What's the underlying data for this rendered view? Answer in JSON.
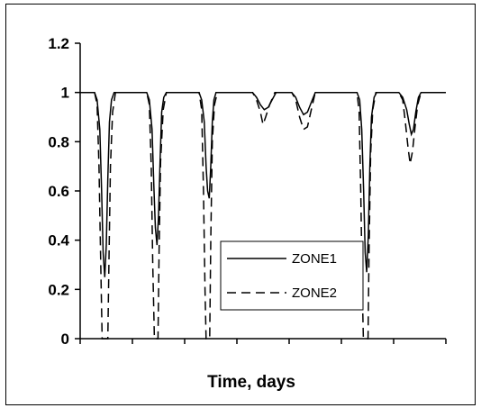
{
  "chart_data": {
    "type": "line",
    "title": "",
    "xlabel": "Time, days",
    "ylabel": "",
    "ylim": [
      0,
      1.2
    ],
    "xlim": [
      0,
      14
    ],
    "yticks": [
      "0",
      "0.2",
      "0.4",
      "0.6",
      "0.8",
      "1",
      "1.2"
    ],
    "xtick_count": 8,
    "grid": false,
    "legend_position": "center-right",
    "series": [
      {
        "name": "ZONE1",
        "style": "solid",
        "color": "#000000",
        "points": [
          [
            0,
            1
          ],
          [
            0.55,
            1
          ],
          [
            0.65,
            0.97
          ],
          [
            0.75,
            0.85
          ],
          [
            0.82,
            0.6
          ],
          [
            0.88,
            0.35
          ],
          [
            0.94,
            0.25
          ],
          [
            1.0,
            0.38
          ],
          [
            1.06,
            0.65
          ],
          [
            1.12,
            0.88
          ],
          [
            1.2,
            0.97
          ],
          [
            1.3,
            1
          ],
          [
            2.55,
            1
          ],
          [
            2.65,
            0.97
          ],
          [
            2.75,
            0.85
          ],
          [
            2.82,
            0.62
          ],
          [
            2.88,
            0.45
          ],
          [
            2.94,
            0.38
          ],
          [
            3.0,
            0.5
          ],
          [
            3.06,
            0.72
          ],
          [
            3.12,
            0.92
          ],
          [
            3.2,
            0.98
          ],
          [
            3.3,
            1
          ],
          [
            4.55,
            1
          ],
          [
            4.65,
            0.97
          ],
          [
            4.75,
            0.88
          ],
          [
            4.82,
            0.7
          ],
          [
            4.88,
            0.6
          ],
          [
            4.94,
            0.57
          ],
          [
            5.0,
            0.7
          ],
          [
            5.06,
            0.88
          ],
          [
            5.12,
            0.97
          ],
          [
            5.2,
            1
          ],
          [
            6.6,
            1
          ],
          [
            6.75,
            0.98
          ],
          [
            6.9,
            0.95
          ],
          [
            7.05,
            0.93
          ],
          [
            7.2,
            0.94
          ],
          [
            7.35,
            0.97
          ],
          [
            7.5,
            1
          ],
          [
            8.1,
            1
          ],
          [
            8.25,
            0.98
          ],
          [
            8.4,
            0.94
          ],
          [
            8.55,
            0.91
          ],
          [
            8.7,
            0.92
          ],
          [
            8.85,
            0.96
          ],
          [
            9.0,
            1
          ],
          [
            10.6,
            1
          ],
          [
            10.7,
            0.97
          ],
          [
            10.78,
            0.85
          ],
          [
            10.85,
            0.6
          ],
          [
            10.91,
            0.35
          ],
          [
            10.97,
            0.27
          ],
          [
            11.03,
            0.42
          ],
          [
            11.09,
            0.7
          ],
          [
            11.15,
            0.9
          ],
          [
            11.25,
            0.98
          ],
          [
            11.35,
            1
          ],
          [
            12.2,
            1
          ],
          [
            12.35,
            0.98
          ],
          [
            12.5,
            0.93
          ],
          [
            12.6,
            0.87
          ],
          [
            12.68,
            0.83
          ],
          [
            12.76,
            0.85
          ],
          [
            12.85,
            0.92
          ],
          [
            12.95,
            0.98
          ],
          [
            13.05,
            1
          ],
          [
            14,
            1
          ]
        ]
      },
      {
        "name": "ZONE2",
        "style": "dashed",
        "color": "#000000",
        "points": [
          [
            0,
            1
          ],
          [
            0.55,
            1
          ],
          [
            0.65,
            0.95
          ],
          [
            0.72,
            0.7
          ],
          [
            0.78,
            0.35
          ],
          [
            0.84,
            0
          ],
          [
            1.06,
            0
          ],
          [
            1.1,
            0.3
          ],
          [
            1.16,
            0.7
          ],
          [
            1.24,
            0.92
          ],
          [
            1.35,
            1
          ],
          [
            2.55,
            1
          ],
          [
            2.65,
            0.95
          ],
          [
            2.72,
            0.7
          ],
          [
            2.78,
            0.3
          ],
          [
            2.84,
            0
          ],
          [
            2.98,
            0
          ],
          [
            3.02,
            0.35
          ],
          [
            3.08,
            0.72
          ],
          [
            3.18,
            0.93
          ],
          [
            3.3,
            1
          ],
          [
            4.55,
            1
          ],
          [
            4.65,
            0.93
          ],
          [
            4.72,
            0.6
          ],
          [
            4.78,
            0.2
          ],
          [
            4.82,
            0
          ],
          [
            4.96,
            0
          ],
          [
            5.0,
            0.4
          ],
          [
            5.06,
            0.8
          ],
          [
            5.14,
            0.95
          ],
          [
            5.25,
            1
          ],
          [
            6.6,
            1
          ],
          [
            6.75,
            0.97
          ],
          [
            6.9,
            0.92
          ],
          [
            7.0,
            0.87
          ],
          [
            7.1,
            0.9
          ],
          [
            7.25,
            0.95
          ],
          [
            7.45,
            1
          ],
          [
            8.1,
            1
          ],
          [
            8.25,
            0.97
          ],
          [
            8.4,
            0.9
          ],
          [
            8.55,
            0.85
          ],
          [
            8.7,
            0.86
          ],
          [
            8.85,
            0.93
          ],
          [
            9.0,
            1
          ],
          [
            10.6,
            1
          ],
          [
            10.68,
            0.92
          ],
          [
            10.74,
            0.6
          ],
          [
            10.8,
            0.2
          ],
          [
            10.84,
            0
          ],
          [
            11.02,
            0
          ],
          [
            11.06,
            0.35
          ],
          [
            11.12,
            0.75
          ],
          [
            11.2,
            0.93
          ],
          [
            11.32,
            1
          ],
          [
            12.2,
            1
          ],
          [
            12.35,
            0.97
          ],
          [
            12.45,
            0.88
          ],
          [
            12.55,
            0.78
          ],
          [
            12.63,
            0.71
          ],
          [
            12.72,
            0.76
          ],
          [
            12.82,
            0.86
          ],
          [
            12.92,
            0.95
          ],
          [
            13.05,
            1
          ],
          [
            14,
            1
          ]
        ]
      }
    ]
  }
}
